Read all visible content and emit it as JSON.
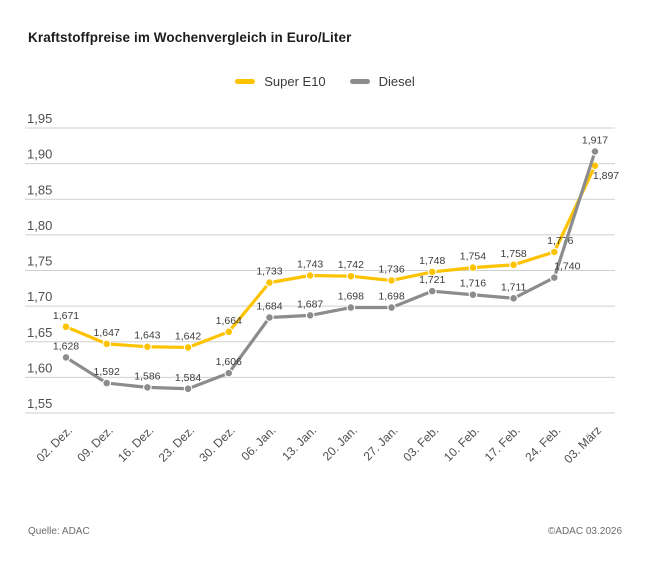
{
  "page": {
    "title": "Kraftstoffpreise im Wochenvergleich in Euro/Liter",
    "footer_left": "Quelle: ADAC",
    "footer_right": "©ADAC 03.2026"
  },
  "colors": {
    "super_e10": "#FDC300",
    "diesel": "#8C8C8C",
    "grid": "#CFCFCF",
    "axis_text": "#4f4f4f",
    "point_label_text": "#3c3c3c",
    "title_text": "#1d1d1b",
    "footer_text": "#6b6b6b"
  },
  "chart_data": {
    "type": "line",
    "title": "Kraftstoffpreise im Wochenvergleich in Euro/Liter",
    "unit": "Euro/Liter",
    "categories": [
      "02. Dez.",
      "09. Dez.",
      "16. Dez.",
      "23. Dez.",
      "30. Dez.",
      "06. Jan.",
      "13. Jan.",
      "20. Jan.",
      "27. Jan.",
      "03. Feb.",
      "10. Feb.",
      "17. Feb.",
      "24. Feb.",
      "03. März"
    ],
    "series": [
      {
        "name": "Super E10",
        "color": "#FDC300",
        "values": [
          1.671,
          1.647,
          1.643,
          1.642,
          1.664,
          1.733,
          1.743,
          1.742,
          1.736,
          1.748,
          1.754,
          1.758,
          1.776,
          1.897
        ],
        "labels": [
          "1,671",
          "1,647",
          "1,643",
          "1,642",
          "1,664",
          "1,733",
          "1,743",
          "1,742",
          "1,736",
          "1,748",
          "1,754",
          "1,758",
          "1,776",
          "1,897"
        ]
      },
      {
        "name": "Diesel",
        "color": "#8C8C8C",
        "values": [
          1.628,
          1.592,
          1.586,
          1.584,
          1.606,
          1.684,
          1.687,
          1.698,
          1.698,
          1.721,
          1.716,
          1.711,
          1.74,
          1.917
        ],
        "labels": [
          "1,628",
          "1,592",
          "1,586",
          "1,584",
          "1,606",
          "1,684",
          "1,687",
          "1,698",
          "1,698",
          "1,721",
          "1,716",
          "1,711",
          "1,740",
          "1,917"
        ]
      }
    ],
    "ylim": [
      1.55,
      1.95
    ],
    "ytick_values": [
      1.55,
      1.6,
      1.65,
      1.7,
      1.75,
      1.8,
      1.85,
      1.9,
      1.95
    ],
    "ytick_labels": [
      "1,55",
      "1,60",
      "1,65",
      "1,70",
      "1,75",
      "1,80",
      "1,85",
      "1,90",
      "1,95"
    ],
    "grid": true,
    "legend_position": "top",
    "label_offsets": {
      "0:12": [
        6,
        0
      ],
      "0:13": [
        11,
        21
      ],
      "1:12": [
        13,
        0
      ]
    }
  }
}
